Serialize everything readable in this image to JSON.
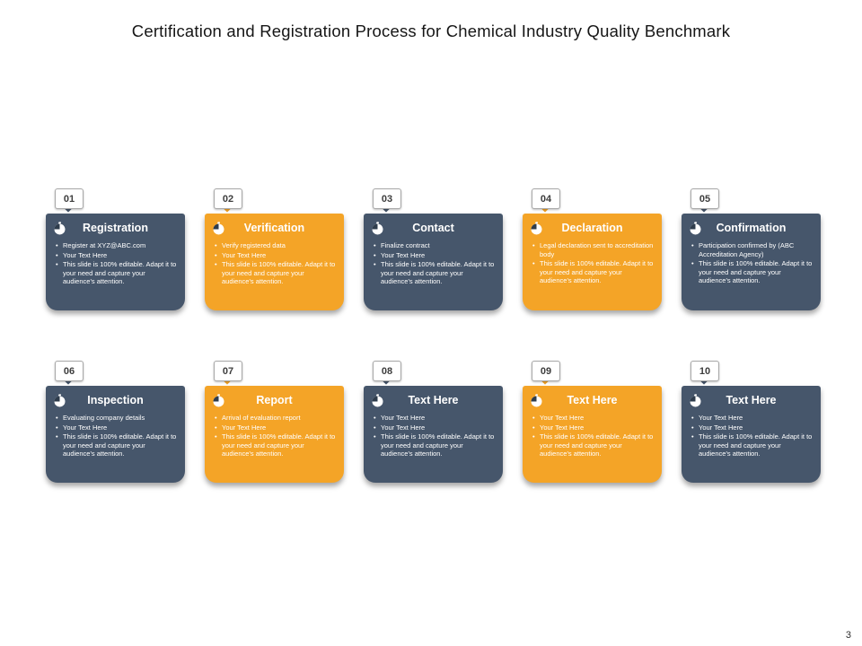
{
  "slide": {
    "title": "Certification and Registration Process for Chemical Industry Quality Benchmark",
    "page_number": "3"
  },
  "colors": {
    "dark": "#46566B",
    "orange": "#F4A427",
    "icon_wedge": "#2E3C4C"
  },
  "cards": [
    {
      "number": "01",
      "title": "Registration",
      "variant": "dark",
      "bullets": [
        "Register at XYZ@ABC.com",
        "Your Text Here",
        "This slide is 100% editable. Adapt it to your need and capture your audience's attention."
      ]
    },
    {
      "number": "02",
      "title": "Verification",
      "variant": "orange",
      "bullets": [
        "Verify registered data",
        "Your Text Here",
        "This slide is 100% editable. Adapt it to your need and capture your audience's attention."
      ]
    },
    {
      "number": "03",
      "title": "Contact",
      "variant": "dark",
      "bullets": [
        "Finalize contract",
        "Your Text Here",
        "This slide is 100% editable. Adapt it to your need and capture your audience's attention."
      ]
    },
    {
      "number": "04",
      "title": "Declaration",
      "variant": "orange",
      "bullets": [
        "Legal declaration sent to accreditation body",
        "This slide is 100% editable. Adapt it to your need and capture your audience's attention."
      ]
    },
    {
      "number": "05",
      "title": "Confirmation",
      "variant": "dark",
      "bullets": [
        "Participation confirmed by (ABC Accreditation Agency)",
        "This slide is 100% editable. Adapt it to your need and capture your audience's attention."
      ]
    },
    {
      "number": "06",
      "title": "Inspection",
      "variant": "dark",
      "bullets": [
        "Evaluating company details",
        "Your Text Here",
        "This slide is 100% editable. Adapt it to your need and capture your audience's attention."
      ]
    },
    {
      "number": "07",
      "title": "Report",
      "variant": "orange",
      "bullets": [
        "Arrival of evaluation report",
        "Your Text Here",
        "This slide is 100% editable. Adapt it to your need and capture your audience's attention."
      ]
    },
    {
      "number": "08",
      "title": "Text Here",
      "variant": "dark",
      "bullets": [
        "Your Text Here",
        "Your Text Here",
        "This slide is 100% editable. Adapt it to your need and capture your audience's attention."
      ]
    },
    {
      "number": "09",
      "title": "Text Here",
      "variant": "orange",
      "bullets": [
        "Your Text Here",
        "Your Text Here",
        "This slide is 100% editable. Adapt it to your need and capture your audience's attention."
      ]
    },
    {
      "number": "10",
      "title": "Text Here",
      "variant": "dark",
      "bullets": [
        "Your Text Here",
        "Your Text Here",
        "This slide is 100% editable. Adapt it to your need and capture your audience's attention."
      ]
    }
  ]
}
